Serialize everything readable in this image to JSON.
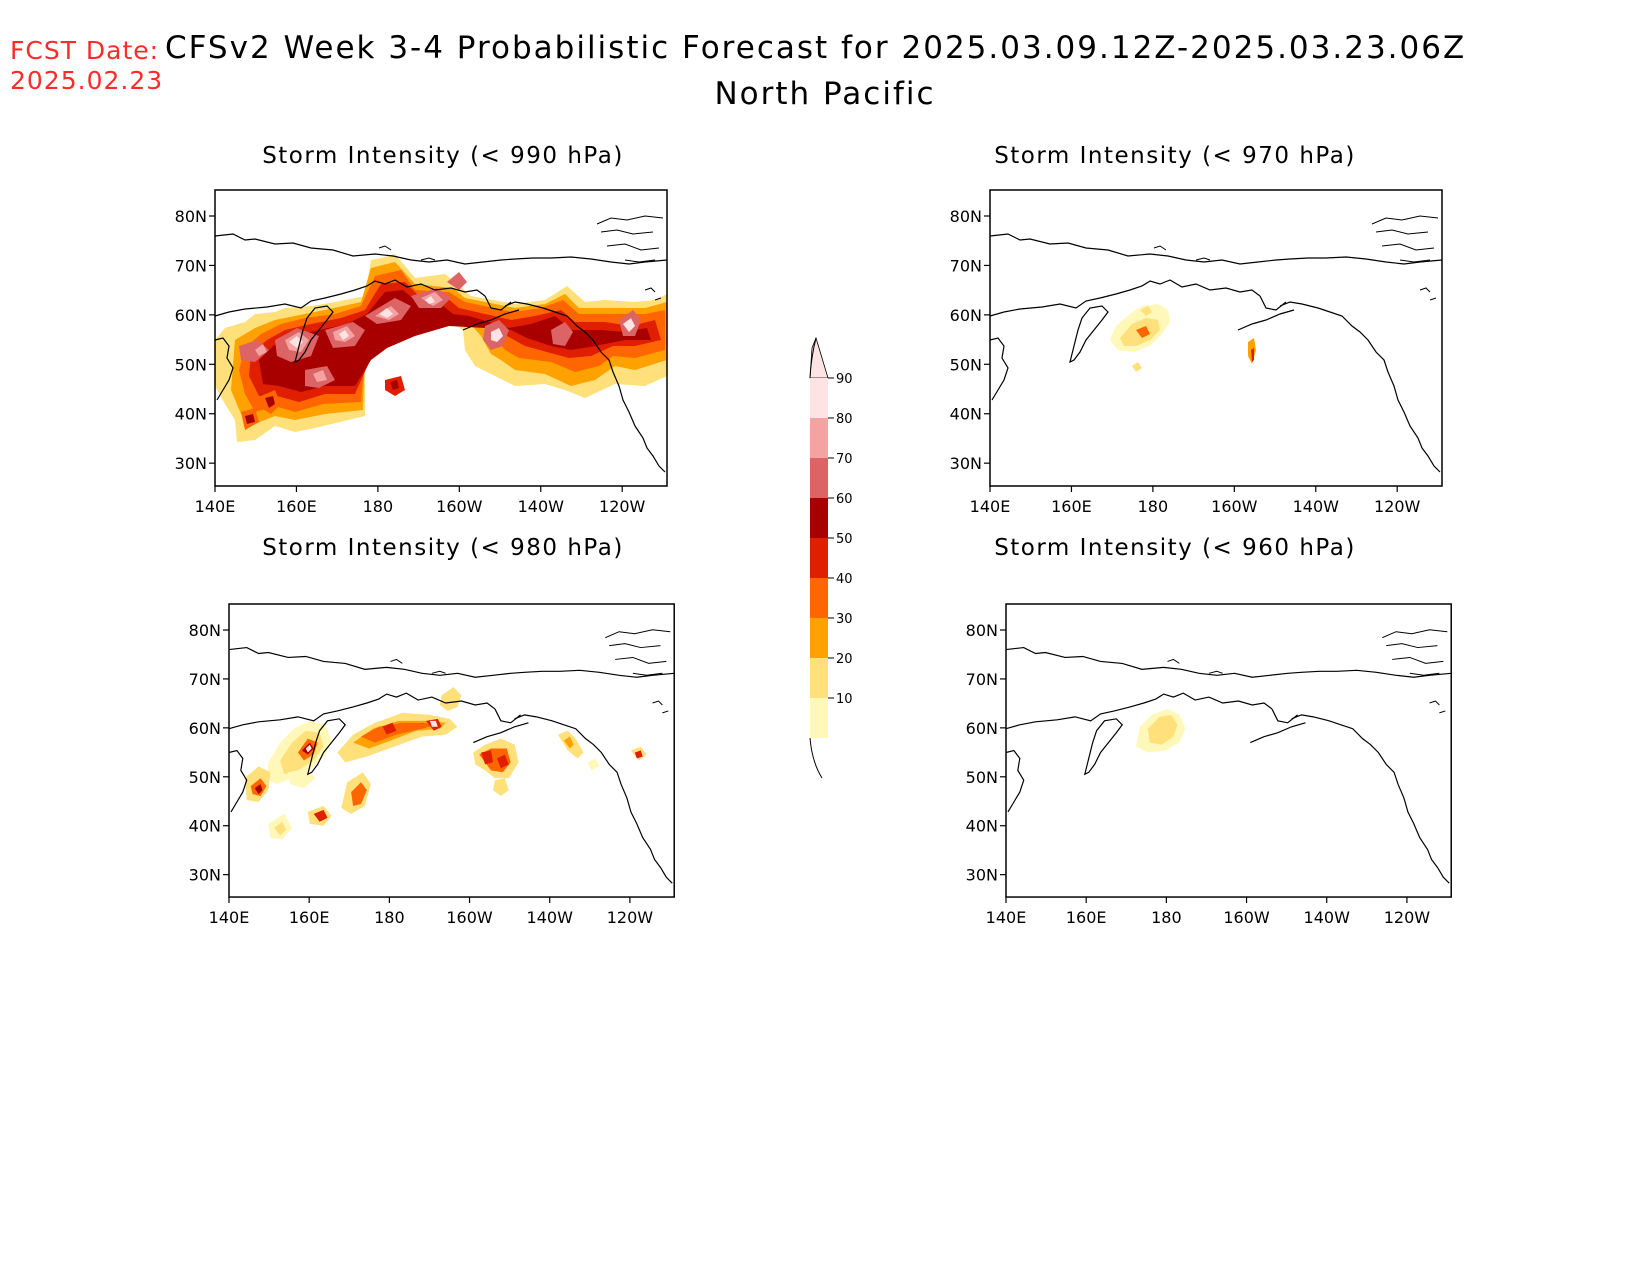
{
  "header": {
    "fcst_label": "FCST Date:",
    "fcst_date": "2025.02.23",
    "title": "CFSv2 Week 3-4 Probabilistic Forecast for 2025.03.09.12Z-2025.03.23.06Z",
    "subtitle": "North Pacific"
  },
  "panels": [
    {
      "id": "p990",
      "title": "Storm Intensity (< 990 hPa)"
    },
    {
      "id": "p970",
      "title": "Storm Intensity (< 970 hPa)"
    },
    {
      "id": "p980",
      "title": "Storm Intensity (< 980 hPa)"
    },
    {
      "id": "p960",
      "title": "Storm Intensity (< 960 hPa)"
    }
  ],
  "axes": {
    "lon_ticks": [
      "140E",
      "160E",
      "180",
      "160W",
      "140W",
      "120W"
    ],
    "lat_ticks": [
      "80N",
      "70N",
      "60N",
      "50N",
      "40N",
      "30N"
    ]
  },
  "colorbar": {
    "levels": [
      "90",
      "80",
      "70",
      "60",
      "50",
      "40",
      "30",
      "20",
      "10"
    ],
    "colors": [
      "#fde3e3",
      "#f4a2a2",
      "#dc6464",
      "#a80000",
      "#e01e00",
      "#ff6600",
      "#ffa200",
      "#ffe07a",
      "#fff8b8"
    ]
  }
}
